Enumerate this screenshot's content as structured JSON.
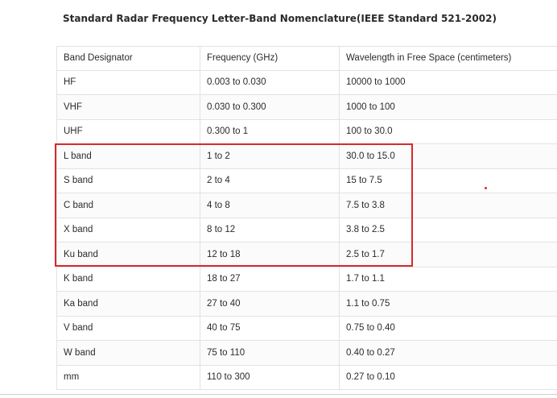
{
  "caption": "Standard Radar Frequency Letter-Band Nomenclature(IEEE Standard 521-2002)",
  "table": {
    "headers": [
      "Band Designator",
      "Frequency (GHz)",
      "Wavelength in Free Space (centimeters)"
    ],
    "rows": [
      [
        "HF",
        "0.003 to 0.030",
        "10000 to 1000"
      ],
      [
        "VHF",
        "0.030 to 0.300",
        "1000 to 100"
      ],
      [
        "UHF",
        "0.300 to 1",
        "100 to 30.0"
      ],
      [
        "L band",
        "1 to 2",
        "30.0 to 15.0"
      ],
      [
        "S band",
        "2 to 4",
        "15 to 7.5"
      ],
      [
        "C band",
        "4 to 8",
        "7.5 to 3.8"
      ],
      [
        "X band",
        "8 to 12",
        "3.8 to 2.5"
      ],
      [
        "Ku band",
        "12 to 18",
        "2.5 to 1.7"
      ],
      [
        "K band",
        "18 to 27",
        "1.7 to 1.1"
      ],
      [
        "Ka band",
        "27 to 40",
        "1.1 to 0.75"
      ],
      [
        "V band",
        "40 to 75",
        "0.75 to 0.40"
      ],
      [
        "W band",
        "75 to 110",
        "0.40 to 0.27"
      ],
      [
        "mm",
        "110 to 300",
        "0.27 to 0.10"
      ]
    ]
  },
  "annotation": {
    "highlight_color": "#d62b2b"
  }
}
